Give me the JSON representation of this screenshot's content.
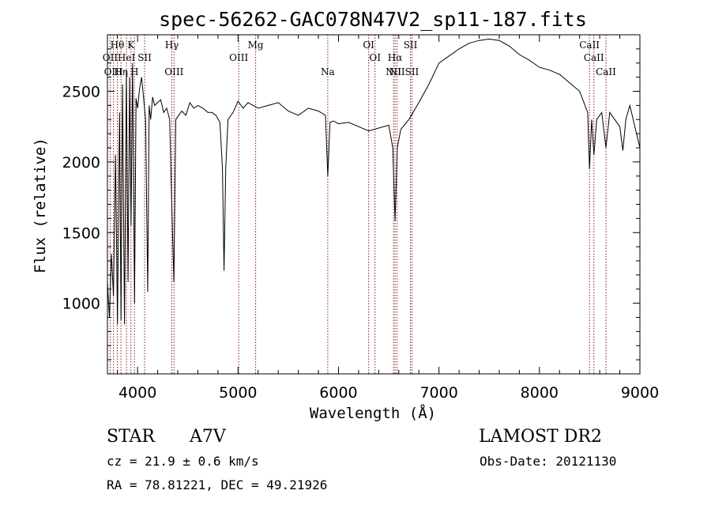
{
  "chart_data": {
    "type": "line",
    "title": "spec-56262-GAC078N47V2_sp11-187.fits",
    "xlabel": "Wavelength (Å)",
    "ylabel": "Flux (relative)",
    "xlim": [
      3700,
      9000
    ],
    "ylim": [
      500,
      2900
    ],
    "xticks": [
      4000,
      5000,
      6000,
      7000,
      8000,
      9000
    ],
    "xtick_labels": [
      "4000",
      "5000",
      "6000",
      "7000",
      "8000",
      "9000"
    ],
    "yticks": [
      1000,
      1500,
      2000,
      2500
    ],
    "ytick_labels": [
      "1000",
      "1500",
      "2000",
      "2500"
    ],
    "grid": false,
    "line_color": "#000000",
    "marker_color": "#8b1a1a",
    "series": [
      {
        "x": [
          3700,
          3720,
          3740,
          3760,
          3780,
          3800,
          3820,
          3835,
          3850,
          3870,
          3889,
          3905,
          3920,
          3935,
          3950,
          3970,
          3985,
          4000,
          4020,
          4040,
          4060,
          4080,
          4101,
          4115,
          4130,
          4150,
          4170,
          4200,
          4230,
          4260,
          4290,
          4320,
          4340,
          4361,
          4380,
          4400,
          4440,
          4480,
          4520,
          4560,
          4600,
          4650,
          4700,
          4740,
          4780,
          4820,
          4845,
          4861,
          4877,
          4900,
          4950,
          5000,
          5050,
          5100,
          5150,
          5200,
          5300,
          5400,
          5500,
          5600,
          5700,
          5800,
          5870,
          5893,
          5915,
          5950,
          6000,
          6100,
          6200,
          6300,
          6400,
          6500,
          6540,
          6563,
          6585,
          6620,
          6700,
          6800,
          6900,
          7000,
          7100,
          7200,
          7300,
          7400,
          7500,
          7600,
          7700,
          7800,
          7900,
          8000,
          8100,
          8200,
          8300,
          8400,
          8480,
          8498,
          8520,
          8542,
          8570,
          8620,
          8662,
          8700,
          8750,
          8800,
          8830,
          8860,
          8900,
          8950,
          9000
        ],
        "y": [
          1150,
          900,
          1350,
          1050,
          2050,
          850,
          2350,
          880,
          2550,
          850,
          2650,
          1150,
          2600,
          1550,
          2700,
          1000,
          2450,
          2380,
          2520,
          2600,
          2450,
          2300,
          1080,
          2400,
          2300,
          2460,
          2400,
          2420,
          2440,
          2350,
          2380,
          2300,
          1700,
          1150,
          2300,
          2320,
          2360,
          2330,
          2420,
          2380,
          2400,
          2380,
          2350,
          2350,
          2330,
          2280,
          1950,
          1230,
          1950,
          2300,
          2350,
          2430,
          2380,
          2420,
          2400,
          2380,
          2400,
          2420,
          2360,
          2330,
          2380,
          2360,
          2330,
          1900,
          2280,
          2290,
          2270,
          2280,
          2250,
          2220,
          2240,
          2260,
          2100,
          1580,
          2100,
          2230,
          2300,
          2420,
          2550,
          2700,
          2750,
          2800,
          2840,
          2860,
          2870,
          2860,
          2820,
          2760,
          2720,
          2670,
          2650,
          2620,
          2560,
          2500,
          2350,
          1950,
          2300,
          2050,
          2300,
          2350,
          2100,
          2350,
          2300,
          2250,
          2080,
          2300,
          2400,
          2250,
          2100
        ]
      }
    ],
    "lines": [
      {
        "name": "Hθ",
        "x": 3798,
        "row": 1
      },
      {
        "name": "OII",
        "x": 3727,
        "row": 2
      },
      {
        "name": "Hη",
        "x": 3835,
        "row": 3
      },
      {
        "name": "OIII",
        "x": 3760,
        "row": 3
      },
      {
        "name": "HeI",
        "x": 3889,
        "row": 2
      },
      {
        "name": "K",
        "x": 3934,
        "row": 1
      },
      {
        "name": "H",
        "x": 3969,
        "row": 3
      },
      {
        "name": "SII",
        "x": 4070,
        "row": 2
      },
      {
        "name": "Hγ",
        "x": 4341,
        "row": 1
      },
      {
        "name": "OIII",
        "x": 4363,
        "row": 3
      },
      {
        "name": "OIII",
        "x": 5007,
        "row": 2
      },
      {
        "name": "Mg",
        "x": 5175,
        "row": 1
      },
      {
        "name": "Na",
        "x": 5893,
        "row": 3
      },
      {
        "name": "OI",
        "x": 6300,
        "row": 1
      },
      {
        "name": "OI",
        "x": 6363,
        "row": 2
      },
      {
        "name": "NII",
        "x": 6548,
        "row": 3
      },
      {
        "name": "Hα",
        "x": 6563,
        "row": 2
      },
      {
        "name": "NII",
        "x": 6583,
        "row": 3
      },
      {
        "name": "SII",
        "x": 6716,
        "row": 1
      },
      {
        "name": "SII",
        "x": 6731,
        "row": 3
      },
      {
        "name": "CaII",
        "x": 8498,
        "row": 1
      },
      {
        "name": "CaII",
        "x": 8542,
        "row": 2
      },
      {
        "name": "CaII",
        "x": 8662,
        "row": 3
      }
    ]
  },
  "info": {
    "object_class": "STAR",
    "subclass": "A7V",
    "survey": "LAMOST DR2",
    "cz": "cz = 21.9 ± 0.6 km/s",
    "obs_date": "Obs-Date: 20121130",
    "coords": "RA =  78.81221, DEC =  49.21926"
  }
}
